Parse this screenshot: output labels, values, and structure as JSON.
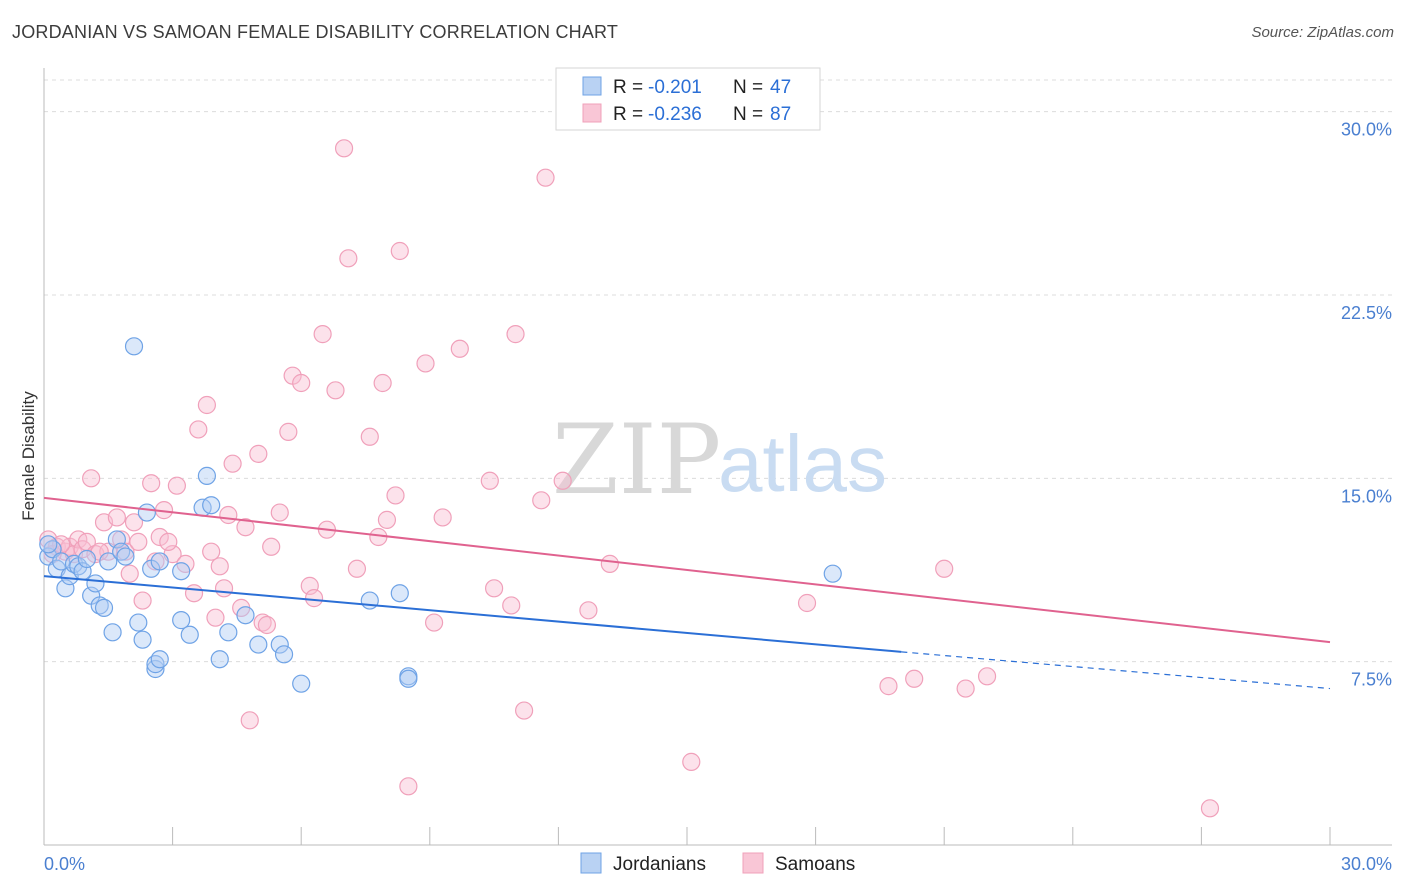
{
  "title": "JORDANIAN VS SAMOAN FEMALE DISABILITY CORRELATION CHART",
  "source": "Source: ZipAtlas.com",
  "watermark": {
    "zip": "ZIP",
    "atlas": "atlas"
  },
  "colors": {
    "blue": "#6fa3e6",
    "blue_line": "#2b6fd6",
    "pink": "#f0a0ba",
    "pink_line": "#e0628f",
    "tick": "#4a7fd0"
  },
  "legend": {
    "rows": [
      {
        "r_label": "R =",
        "r_value": "-0.201",
        "n_label": "N =",
        "n_value": "47"
      },
      {
        "r_label": "R =",
        "r_value": "-0.236",
        "n_label": "N =",
        "n_value": "87"
      }
    ]
  },
  "chart_data": {
    "type": "scatter",
    "ylabel": "Female Disability",
    "xlim": [
      0,
      30
    ],
    "ylim": [
      0,
      31.5
    ],
    "x_tick_labels": [
      "0.0%",
      "30.0%"
    ],
    "y_ticks": [
      7.5,
      15.0,
      22.5,
      30.0
    ],
    "y_tick_labels": [
      "7.5%",
      "15.0%",
      "22.5%",
      "30.0%"
    ],
    "grid": true,
    "legend_position": "bottom-center",
    "series": [
      {
        "name": "Jordanians",
        "trend": {
          "x0": 0,
          "y0": 11.0,
          "x1": 20.0,
          "y1": 7.9,
          "dash_to_x": 30.0,
          "dash_to_y": 6.4
        },
        "points": [
          [
            0.1,
            11.8
          ],
          [
            0.2,
            12.1
          ],
          [
            0.3,
            11.3
          ],
          [
            0.4,
            11.6
          ],
          [
            0.5,
            10.5
          ],
          [
            0.6,
            11.0
          ],
          [
            0.7,
            11.5
          ],
          [
            0.8,
            11.4
          ],
          [
            0.9,
            11.2
          ],
          [
            1.0,
            11.7
          ],
          [
            1.1,
            10.2
          ],
          [
            1.2,
            10.7
          ],
          [
            1.3,
            9.8
          ],
          [
            1.4,
            9.7
          ],
          [
            1.5,
            11.6
          ],
          [
            1.6,
            8.7
          ],
          [
            1.7,
            12.5
          ],
          [
            1.8,
            12.0
          ],
          [
            1.9,
            11.8
          ],
          [
            2.1,
            20.4
          ],
          [
            2.2,
            9.1
          ],
          [
            2.3,
            8.4
          ],
          [
            2.4,
            13.6
          ],
          [
            2.5,
            11.3
          ],
          [
            2.6,
            7.2
          ],
          [
            2.6,
            7.4
          ],
          [
            2.7,
            11.6
          ],
          [
            2.7,
            7.6
          ],
          [
            3.2,
            9.2
          ],
          [
            3.2,
            11.2
          ],
          [
            3.4,
            8.6
          ],
          [
            3.7,
            13.8
          ],
          [
            3.8,
            15.1
          ],
          [
            3.9,
            13.9
          ],
          [
            4.1,
            7.6
          ],
          [
            4.3,
            8.7
          ],
          [
            4.7,
            9.4
          ],
          [
            5.0,
            8.2
          ],
          [
            5.5,
            8.2
          ],
          [
            5.6,
            7.8
          ],
          [
            6.0,
            6.6
          ],
          [
            7.6,
            10.0
          ],
          [
            8.3,
            10.3
          ],
          [
            8.5,
            6.9
          ],
          [
            8.5,
            6.8
          ],
          [
            18.4,
            11.1
          ],
          [
            0.1,
            12.3
          ]
        ]
      },
      {
        "name": "Samoans",
        "trend": {
          "x0": 0,
          "y0": 14.2,
          "x1": 30.0,
          "y1": 8.3
        },
        "points": [
          [
            0.1,
            12.5
          ],
          [
            0.3,
            12.2
          ],
          [
            0.5,
            12.0
          ],
          [
            0.6,
            12.2
          ],
          [
            0.7,
            11.9
          ],
          [
            0.8,
            12.5
          ],
          [
            0.9,
            12.1
          ],
          [
            1.0,
            12.4
          ],
          [
            1.1,
            15.0
          ],
          [
            1.2,
            11.9
          ],
          [
            1.4,
            13.2
          ],
          [
            1.5,
            12.0
          ],
          [
            1.7,
            13.4
          ],
          [
            1.8,
            12.5
          ],
          [
            1.9,
            12.0
          ],
          [
            2.0,
            11.1
          ],
          [
            2.1,
            13.2
          ],
          [
            2.2,
            12.4
          ],
          [
            2.3,
            10.0
          ],
          [
            2.5,
            14.8
          ],
          [
            2.6,
            11.6
          ],
          [
            2.7,
            12.6
          ],
          [
            2.8,
            13.7
          ],
          [
            3.0,
            11.9
          ],
          [
            3.1,
            14.7
          ],
          [
            3.3,
            11.5
          ],
          [
            3.5,
            10.3
          ],
          [
            3.6,
            17.0
          ],
          [
            3.8,
            18.0
          ],
          [
            4.0,
            9.3
          ],
          [
            4.1,
            11.4
          ],
          [
            4.2,
            10.5
          ],
          [
            4.3,
            13.5
          ],
          [
            4.4,
            15.6
          ],
          [
            4.6,
            9.7
          ],
          [
            4.7,
            13.0
          ],
          [
            4.8,
            5.1
          ],
          [
            5.0,
            16.0
          ],
          [
            5.1,
            9.1
          ],
          [
            5.3,
            12.2
          ],
          [
            5.5,
            13.6
          ],
          [
            5.7,
            16.9
          ],
          [
            5.8,
            19.2
          ],
          [
            6.0,
            18.9
          ],
          [
            6.2,
            10.6
          ],
          [
            6.3,
            10.1
          ],
          [
            6.5,
            20.9
          ],
          [
            6.6,
            12.9
          ],
          [
            6.8,
            18.6
          ],
          [
            7.0,
            28.5
          ],
          [
            7.1,
            24.0
          ],
          [
            7.3,
            11.3
          ],
          [
            7.6,
            16.7
          ],
          [
            7.8,
            12.6
          ],
          [
            7.9,
            18.9
          ],
          [
            8.0,
            13.3
          ],
          [
            8.2,
            14.3
          ],
          [
            8.3,
            24.3
          ],
          [
            8.5,
            2.4
          ],
          [
            8.9,
            19.7
          ],
          [
            9.1,
            9.1
          ],
          [
            9.3,
            13.4
          ],
          [
            9.7,
            20.3
          ],
          [
            10.4,
            14.9
          ],
          [
            10.5,
            10.5
          ],
          [
            10.9,
            9.8
          ],
          [
            11.0,
            20.9
          ],
          [
            11.2,
            5.5
          ],
          [
            11.6,
            14.1
          ],
          [
            11.7,
            27.3
          ],
          [
            12.1,
            14.9
          ],
          [
            12.7,
            9.6
          ],
          [
            13.2,
            11.5
          ],
          [
            15.1,
            3.4
          ],
          [
            17.8,
            9.9
          ],
          [
            19.7,
            6.5
          ],
          [
            20.3,
            6.8
          ],
          [
            21.0,
            11.3
          ],
          [
            21.5,
            6.4
          ],
          [
            22.0,
            6.9
          ],
          [
            27.2,
            1.5
          ],
          [
            0.2,
            11.9
          ],
          [
            0.4,
            12.3
          ],
          [
            1.3,
            12.0
          ],
          [
            2.9,
            12.4
          ],
          [
            3.9,
            12.0
          ],
          [
            5.2,
            9.0
          ]
        ]
      }
    ]
  }
}
